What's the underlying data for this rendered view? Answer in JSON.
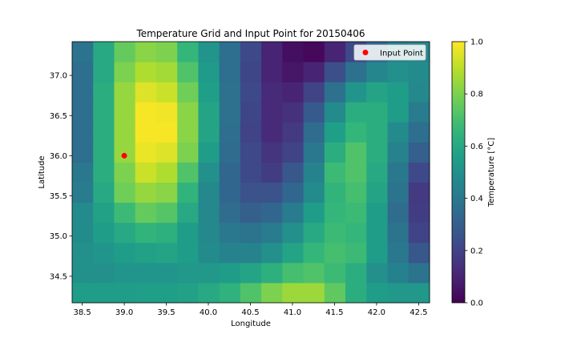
{
  "chart_data": {
    "type": "heatmap",
    "title": "Temperature Grid and Input Point for 20150406",
    "xlabel": "Longitude",
    "ylabel": "Latitude",
    "x_edges": [
      38.38,
      38.63,
      38.88,
      39.13,
      39.38,
      39.63,
      39.88,
      40.13,
      40.38,
      40.63,
      40.88,
      41.13,
      41.38,
      41.63,
      41.88,
      42.13,
      42.38,
      42.63
    ],
    "y_edges": [
      34.17,
      34.42,
      34.67,
      34.92,
      35.17,
      35.42,
      35.67,
      35.92,
      36.17,
      36.42,
      36.67,
      36.92,
      37.17,
      37.42
    ],
    "xlim": [
      38.38,
      42.63
    ],
    "ylim": [
      34.17,
      37.42
    ],
    "xticks": [
      "38.5",
      "39.0",
      "39.5",
      "40.0",
      "40.5",
      "41.0",
      "41.5",
      "42.0",
      "42.5"
    ],
    "yticks": [
      "34.5",
      "35.0",
      "35.5",
      "36.0",
      "36.5",
      "37.0"
    ],
    "values": [
      [
        0.55,
        0.55,
        0.55,
        0.56,
        0.56,
        0.57,
        0.6,
        0.64,
        0.72,
        0.8,
        0.85,
        0.85,
        0.75,
        0.62,
        0.55,
        0.53,
        0.53
      ],
      [
        0.5,
        0.5,
        0.52,
        0.52,
        0.52,
        0.53,
        0.53,
        0.55,
        0.58,
        0.63,
        0.7,
        0.72,
        0.68,
        0.62,
        0.5,
        0.44,
        0.38
      ],
      [
        0.5,
        0.52,
        0.55,
        0.57,
        0.58,
        0.55,
        0.48,
        0.45,
        0.45,
        0.5,
        0.58,
        0.66,
        0.7,
        0.68,
        0.55,
        0.4,
        0.27
      ],
      [
        0.48,
        0.55,
        0.6,
        0.65,
        0.63,
        0.55,
        0.47,
        0.4,
        0.38,
        0.42,
        0.5,
        0.6,
        0.68,
        0.66,
        0.55,
        0.38,
        0.2
      ],
      [
        0.48,
        0.57,
        0.68,
        0.76,
        0.73,
        0.6,
        0.47,
        0.35,
        0.3,
        0.33,
        0.42,
        0.55,
        0.66,
        0.68,
        0.55,
        0.35,
        0.18
      ],
      [
        0.42,
        0.6,
        0.78,
        0.84,
        0.82,
        0.65,
        0.47,
        0.33,
        0.25,
        0.25,
        0.33,
        0.48,
        0.65,
        0.7,
        0.58,
        0.38,
        0.17
      ],
      [
        0.4,
        0.62,
        0.8,
        0.92,
        0.88,
        0.72,
        0.5,
        0.33,
        0.22,
        0.18,
        0.27,
        0.45,
        0.68,
        0.72,
        0.6,
        0.4,
        0.22
      ],
      [
        0.36,
        0.62,
        0.84,
        0.97,
        0.95,
        0.8,
        0.55,
        0.35,
        0.22,
        0.15,
        0.2,
        0.4,
        0.62,
        0.72,
        0.62,
        0.45,
        0.3
      ],
      [
        0.36,
        0.62,
        0.84,
        0.99,
        0.99,
        0.82,
        0.58,
        0.36,
        0.2,
        0.12,
        0.17,
        0.35,
        0.56,
        0.66,
        0.62,
        0.48,
        0.36
      ],
      [
        0.36,
        0.62,
        0.84,
        0.99,
        0.98,
        0.82,
        0.58,
        0.37,
        0.21,
        0.12,
        0.14,
        0.28,
        0.48,
        0.62,
        0.62,
        0.55,
        0.42
      ],
      [
        0.36,
        0.62,
        0.84,
        0.95,
        0.92,
        0.78,
        0.56,
        0.37,
        0.22,
        0.12,
        0.1,
        0.2,
        0.37,
        0.52,
        0.58,
        0.55,
        0.47
      ],
      [
        0.36,
        0.6,
        0.8,
        0.88,
        0.86,
        0.72,
        0.54,
        0.36,
        0.21,
        0.1,
        0.06,
        0.1,
        0.24,
        0.37,
        0.46,
        0.5,
        0.48
      ],
      [
        0.38,
        0.6,
        0.76,
        0.82,
        0.8,
        0.66,
        0.52,
        0.36,
        0.22,
        0.1,
        0.04,
        0.02,
        0.1,
        0.22,
        0.33,
        0.44,
        0.46
      ]
    ],
    "points": [
      {
        "x": 39.0,
        "y": 36.0,
        "name": "Input Point",
        "color": "#ff0000"
      }
    ],
    "legend_position": "top-right",
    "colorbar": {
      "label": "Temperature [°C]",
      "range": [
        0.0,
        1.0
      ],
      "ticks": [
        "0.0",
        "0.2",
        "0.4",
        "0.6",
        "0.8",
        "1.0"
      ],
      "colormap": "viridis"
    }
  }
}
